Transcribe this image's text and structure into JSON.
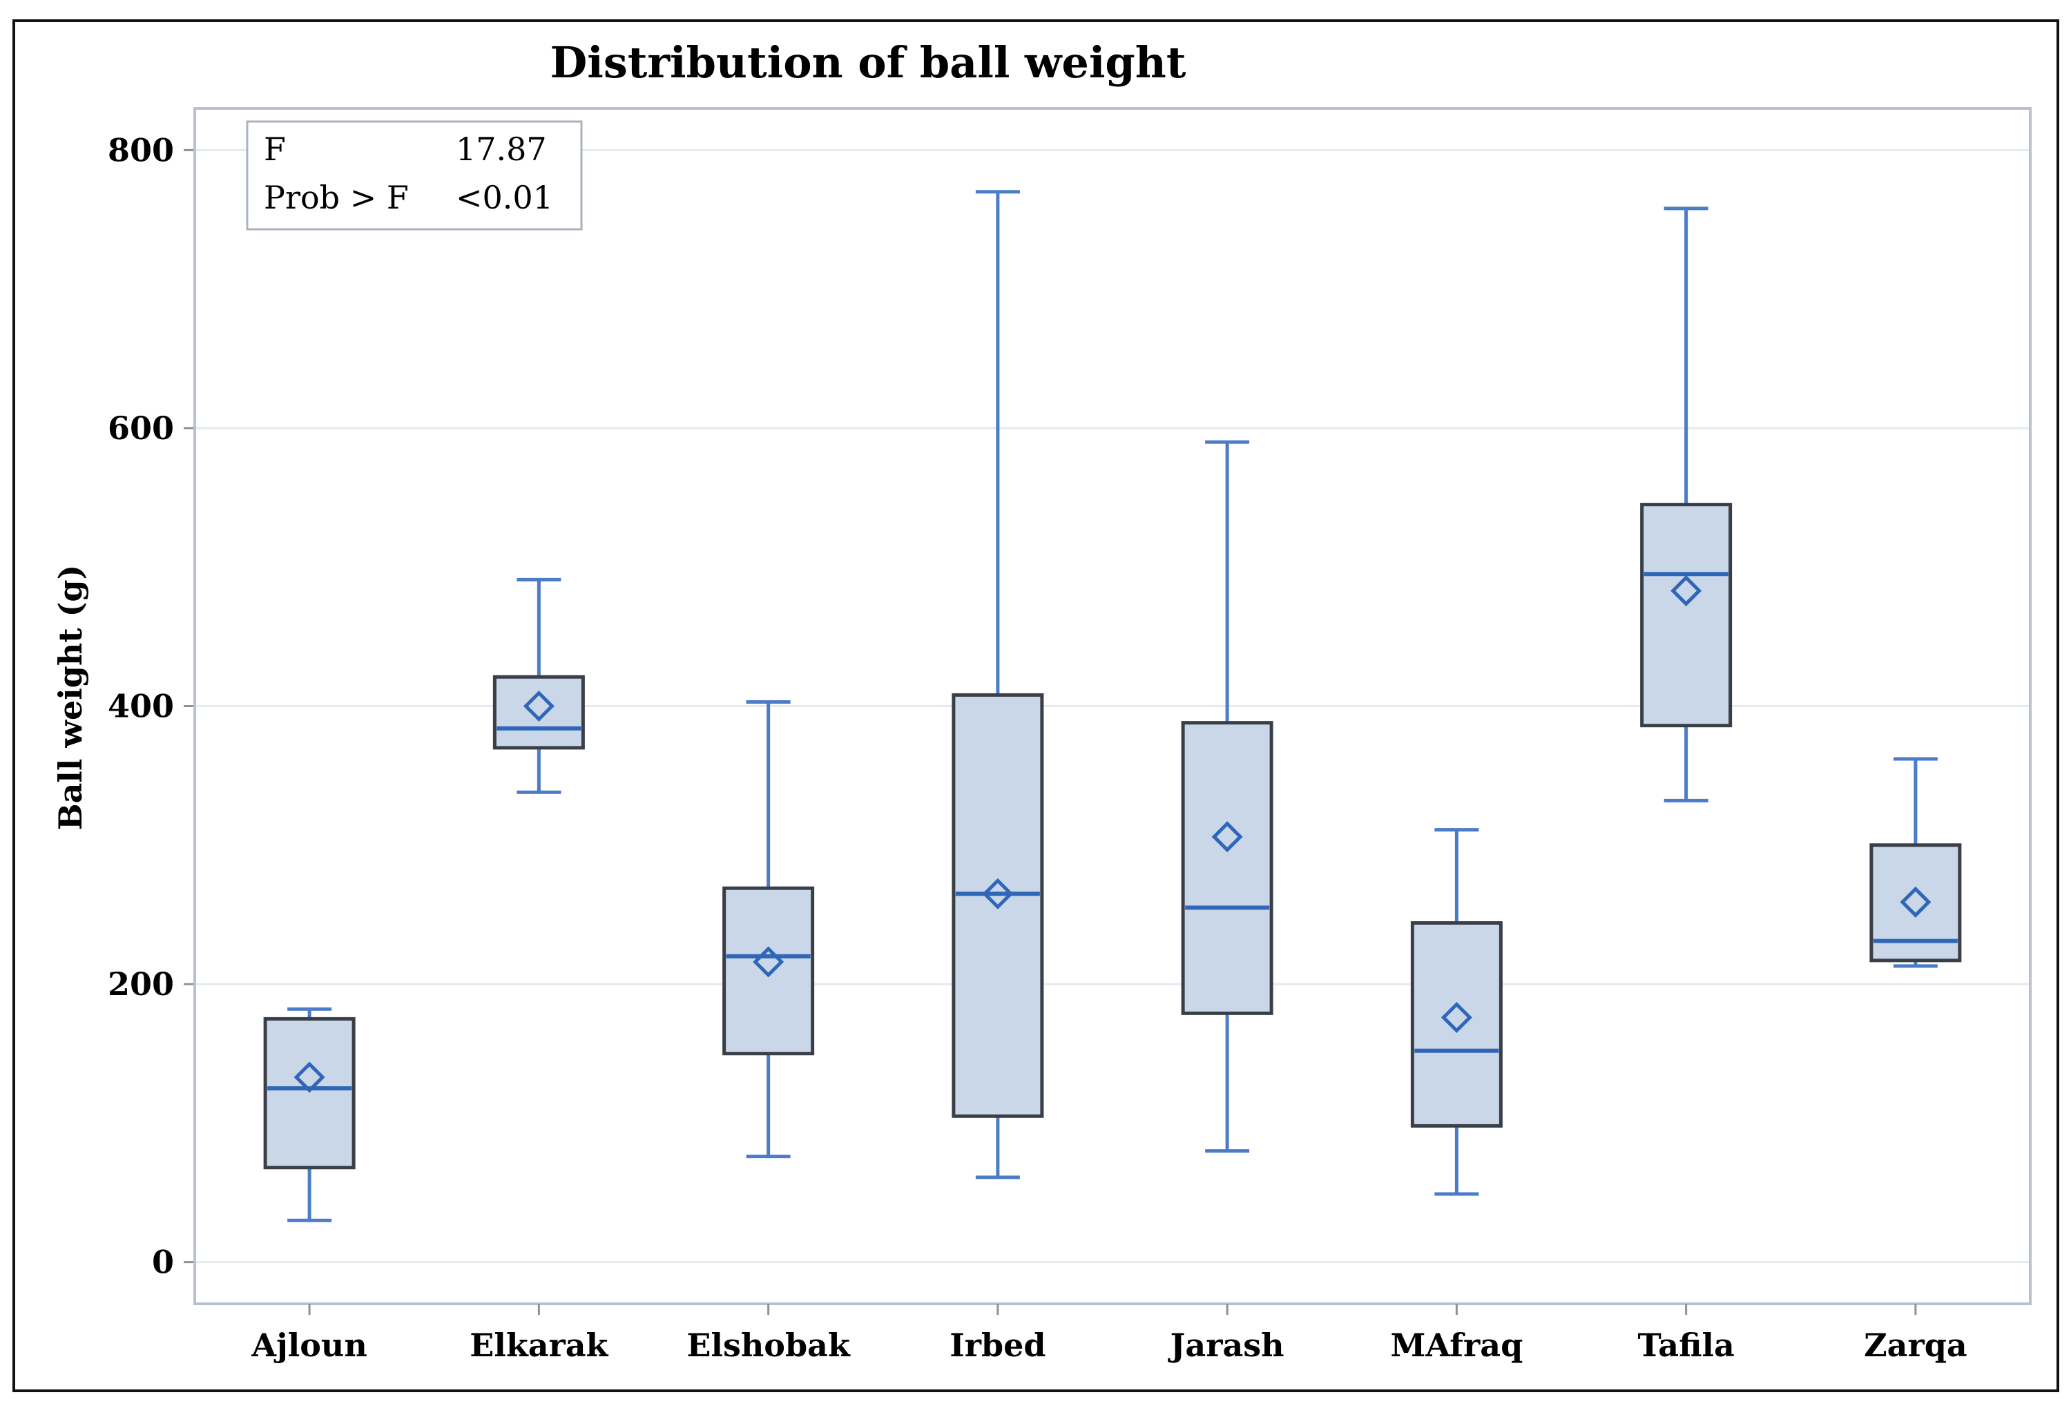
{
  "chart_data": {
    "type": "boxplot",
    "title": "Distribution of ball weight",
    "xlabel": "",
    "ylabel": "Ball weight (g)",
    "ylim": [
      -30,
      830
    ],
    "yticks": [
      0,
      200,
      400,
      600,
      800
    ],
    "grid": true,
    "categories": [
      "Ajloun",
      "Elkarak",
      "Elshobak",
      "Irbed",
      "Jarash",
      "MAfraq",
      "Tafila",
      "Zarqa"
    ],
    "boxes": [
      {
        "category": "Ajloun",
        "min": 30,
        "q1": 68,
        "median": 125,
        "q3": 175,
        "max": 182,
        "mean": 133
      },
      {
        "category": "Elkarak",
        "min": 338,
        "q1": 370,
        "median": 384,
        "q3": 421,
        "max": 491,
        "mean": 400
      },
      {
        "category": "Elshobak",
        "min": 76,
        "q1": 150,
        "median": 220,
        "q3": 269,
        "max": 403,
        "mean": 216
      },
      {
        "category": "Irbed",
        "min": 61,
        "q1": 105,
        "median": 265,
        "q3": 408,
        "max": 770,
        "mean": 265
      },
      {
        "category": "Jarash",
        "min": 80,
        "q1": 179,
        "median": 255,
        "q3": 388,
        "max": 590,
        "mean": 306
      },
      {
        "category": "MAfraq",
        "min": 49,
        "q1": 98,
        "median": 152,
        "q3": 244,
        "max": 311,
        "mean": 176
      },
      {
        "category": "Tafila",
        "min": 332,
        "q1": 386,
        "median": 495,
        "q3": 545,
        "max": 758,
        "mean": 483
      },
      {
        "category": "Zarqa",
        "min": 213,
        "q1": 217,
        "median": 231,
        "q3": 300,
        "max": 362,
        "mean": 259
      }
    ],
    "stats_box": {
      "placement": "top-left",
      "rows": [
        {
          "label": "F",
          "value": "17.87"
        },
        {
          "label": "Prob > F",
          "value": "<0.01"
        }
      ]
    },
    "colors": {
      "box_fill": "#c9d7e8",
      "box_stroke": "#3a3f47",
      "whisker": "#4a7cc7",
      "median": "#2f66b8",
      "mean_marker": "#2f66b8",
      "grid": "#e6e9ee",
      "frame": "#b9c2cc"
    }
  }
}
